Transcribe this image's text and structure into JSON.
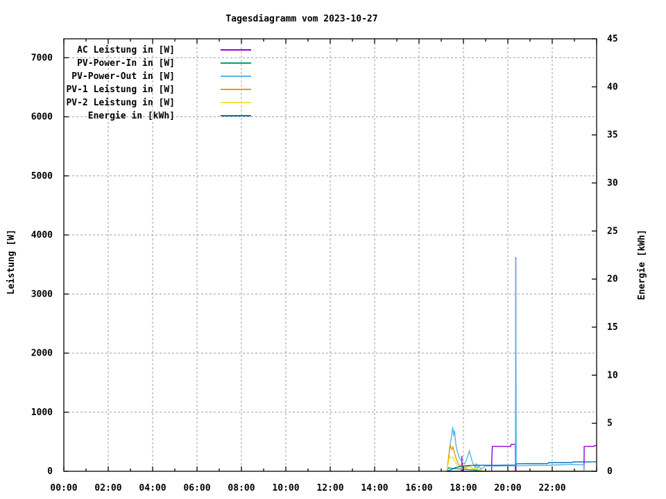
{
  "chart_data": {
    "type": "line",
    "title": "Tagesdiagramm vom 2023-10-27",
    "legend_position": "top-left",
    "grid": {
      "style": "dashed",
      "color": "#9c9c9c",
      "vertical_every_hours": 2,
      "horizontal_every_watts": 1000
    },
    "border_color": "#000000",
    "background_color": "#ffffff",
    "x": {
      "unit": "time of day",
      "range_hours": [
        0,
        24
      ],
      "major_ticks": [
        {
          "hour": 0,
          "label": "00:00"
        },
        {
          "hour": 2,
          "label": "02:00"
        },
        {
          "hour": 4,
          "label": "04:00"
        },
        {
          "hour": 6,
          "label": "06:00"
        },
        {
          "hour": 8,
          "label": "08:00"
        },
        {
          "hour": 10,
          "label": "10:00"
        },
        {
          "hour": 12,
          "label": "12:00"
        },
        {
          "hour": 14,
          "label": "14:00"
        },
        {
          "hour": 16,
          "label": "16:00"
        },
        {
          "hour": 18,
          "label": "18:00"
        },
        {
          "hour": 20,
          "label": "20:00"
        },
        {
          "hour": 22,
          "label": "22:00"
        },
        {
          "hour": 24,
          "label": ""
        }
      ],
      "minor_tick_hours": [
        1,
        3,
        5,
        7,
        9,
        11,
        13,
        15,
        17,
        19,
        21,
        23
      ],
      "grid_hours": [
        2,
        4,
        6,
        8,
        10,
        12,
        14,
        16,
        18,
        20,
        22
      ]
    },
    "y_left": {
      "label": "Leistung [W]",
      "ticks": [
        0,
        1000,
        2000,
        3000,
        4000,
        5000,
        6000,
        7000
      ],
      "grid_values": [
        1000,
        2000,
        3000,
        4000,
        5000,
        6000,
        7000
      ],
      "range": [
        0,
        7320
      ]
    },
    "y_right": {
      "label": "Energie [kWh]",
      "ticks": [
        0,
        5,
        10,
        15,
        20,
        25,
        30,
        35,
        40,
        45
      ],
      "range": [
        0,
        45
      ]
    },
    "series": [
      {
        "name": "AC Leistung in [W]",
        "color": "#9400d3",
        "axis": "left",
        "points": [
          [
            17.25,
            0
          ],
          [
            17.92,
            0
          ],
          [
            17.93,
            260
          ],
          [
            17.95,
            0
          ],
          [
            19.27,
            0
          ],
          [
            19.28,
            240
          ],
          [
            19.3,
            420
          ],
          [
            20.13,
            420
          ],
          [
            20.15,
            455
          ],
          [
            20.33,
            455
          ],
          [
            20.34,
            0
          ],
          [
            20.35,
            0
          ],
          [
            20.36,
            3620
          ],
          [
            20.37,
            0
          ],
          [
            23.43,
            0
          ],
          [
            23.44,
            420
          ],
          [
            23.88,
            420
          ],
          [
            23.9,
            435
          ],
          [
            24,
            435
          ]
        ]
      },
      {
        "name": "PV-Power-In in [W]",
        "color": "#009e73",
        "axis": "left",
        "points": [
          [
            17.25,
            0
          ],
          [
            17.33,
            60
          ],
          [
            17.45,
            50
          ],
          [
            17.6,
            45
          ],
          [
            17.8,
            40
          ],
          [
            18.0,
            35
          ],
          [
            18.2,
            30
          ],
          [
            18.45,
            22
          ],
          [
            18.6,
            12
          ],
          [
            18.75,
            0
          ],
          [
            24,
            0
          ]
        ]
      },
      {
        "name": "PV-Power-Out in [W]",
        "color": "#56b4e9",
        "axis": "left",
        "points": [
          [
            17.25,
            0
          ],
          [
            17.3,
            140
          ],
          [
            17.38,
            400
          ],
          [
            17.45,
            560
          ],
          [
            17.52,
            750
          ],
          [
            17.56,
            600
          ],
          [
            17.6,
            690
          ],
          [
            17.65,
            480
          ],
          [
            17.72,
            340
          ],
          [
            17.8,
            250
          ],
          [
            17.88,
            185
          ],
          [
            17.96,
            150
          ],
          [
            18.05,
            125
          ],
          [
            18.12,
            170
          ],
          [
            18.2,
            260
          ],
          [
            18.27,
            345
          ],
          [
            18.33,
            250
          ],
          [
            18.4,
            160
          ],
          [
            18.47,
            105
          ],
          [
            18.53,
            60
          ],
          [
            18.58,
            135
          ],
          [
            18.63,
            45
          ],
          [
            18.7,
            90
          ],
          [
            18.78,
            35
          ],
          [
            18.88,
            55
          ],
          [
            18.97,
            90
          ],
          [
            19.5,
            88
          ],
          [
            20.0,
            92
          ],
          [
            20.33,
            92
          ],
          [
            20.34,
            95
          ],
          [
            20.36,
            3600
          ],
          [
            20.38,
            95
          ],
          [
            20.8,
            95
          ],
          [
            21.0,
            100
          ],
          [
            21.8,
            100
          ],
          [
            22.0,
            105
          ],
          [
            22.85,
            115
          ],
          [
            23.0,
            112
          ],
          [
            23.42,
            112
          ],
          [
            23.43,
            0
          ],
          [
            24,
            0
          ]
        ]
      },
      {
        "name": "PV-1 Leistung in [W]",
        "color": "#e69f00",
        "axis": "left",
        "points": [
          [
            17.25,
            0
          ],
          [
            17.3,
            130
          ],
          [
            17.36,
            320
          ],
          [
            17.42,
            434
          ],
          [
            17.48,
            370
          ],
          [
            17.53,
            410
          ],
          [
            17.6,
            300
          ],
          [
            17.68,
            205
          ],
          [
            17.76,
            130
          ],
          [
            17.85,
            92
          ],
          [
            17.95,
            68
          ],
          [
            18.05,
            62
          ],
          [
            18.15,
            75
          ],
          [
            18.25,
            95
          ],
          [
            18.33,
            70
          ],
          [
            18.42,
            48
          ],
          [
            18.55,
            38
          ],
          [
            18.7,
            22
          ],
          [
            18.85,
            10
          ],
          [
            18.95,
            0
          ],
          [
            24,
            0
          ]
        ]
      },
      {
        "name": "PV-2 Leistung in [W]",
        "color": "#f0e442",
        "axis": "left",
        "points": [
          [
            17.25,
            0
          ],
          [
            17.3,
            100
          ],
          [
            17.38,
            258
          ],
          [
            17.46,
            215
          ],
          [
            17.54,
            240
          ],
          [
            17.62,
            165
          ],
          [
            17.72,
            105
          ],
          [
            17.82,
            70
          ],
          [
            17.92,
            48
          ],
          [
            18.02,
            40
          ],
          [
            18.15,
            58
          ],
          [
            18.28,
            80
          ],
          [
            18.4,
            45
          ],
          [
            18.55,
            52
          ],
          [
            18.68,
            32
          ],
          [
            18.82,
            22
          ],
          [
            18.95,
            0
          ],
          [
            24,
            0
          ]
        ]
      },
      {
        "name": "Energie in [kWh]",
        "color": "#0072b2",
        "axis": "right",
        "points": [
          [
            17.25,
            0
          ],
          [
            17.35,
            0.08
          ],
          [
            17.45,
            0.18
          ],
          [
            17.55,
            0.28
          ],
          [
            17.65,
            0.38
          ],
          [
            17.78,
            0.46
          ],
          [
            17.9,
            0.52
          ],
          [
            18.05,
            0.57
          ],
          [
            18.2,
            0.6
          ],
          [
            18.4,
            0.62
          ],
          [
            18.6,
            0.63
          ],
          [
            19.5,
            0.63
          ],
          [
            20.35,
            0.64
          ],
          [
            20.4,
            0.78
          ],
          [
            21.0,
            0.79
          ],
          [
            21.8,
            0.8
          ],
          [
            21.85,
            0.9
          ],
          [
            22.6,
            0.9
          ],
          [
            22.9,
            0.91
          ],
          [
            22.95,
            0.97
          ],
          [
            23.7,
            0.97
          ],
          [
            23.75,
            0.98
          ],
          [
            24,
            0.98
          ]
        ]
      }
    ]
  }
}
